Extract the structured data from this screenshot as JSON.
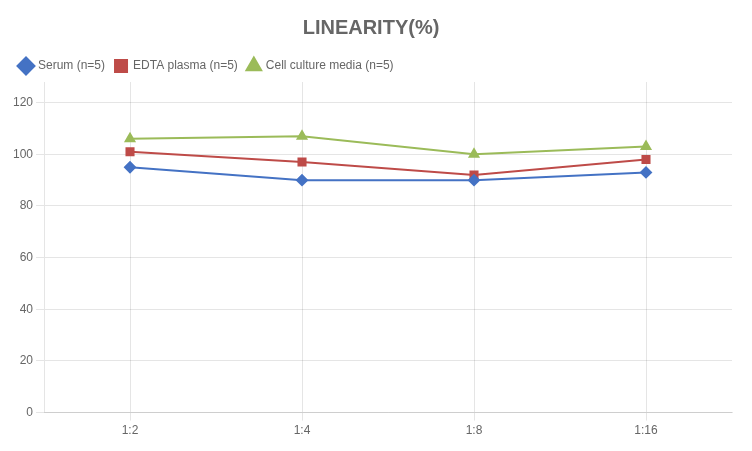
{
  "chart_data": {
    "type": "line",
    "title": "LINEARITY(%)",
    "categories": [
      "1:2",
      "1:4",
      "1:8",
      "1:16"
    ],
    "series": [
      {
        "name": "Serum (n=5)",
        "color": "#4472C4",
        "marker": "diamond",
        "values": [
          95,
          90,
          90,
          93
        ]
      },
      {
        "name": "EDTA plasma (n=5)",
        "color": "#BE4B48",
        "marker": "square",
        "values": [
          101,
          97,
          92,
          98
        ]
      },
      {
        "name": "Cell culture media (n=5)",
        "color": "#9BBB59",
        "marker": "triangle",
        "values": [
          106,
          107,
          100,
          103
        ]
      }
    ],
    "ylim": [
      0,
      128
    ],
    "yticks": [
      0,
      20,
      40,
      60,
      80,
      100,
      120
    ],
    "grid": true,
    "legend": "top"
  }
}
